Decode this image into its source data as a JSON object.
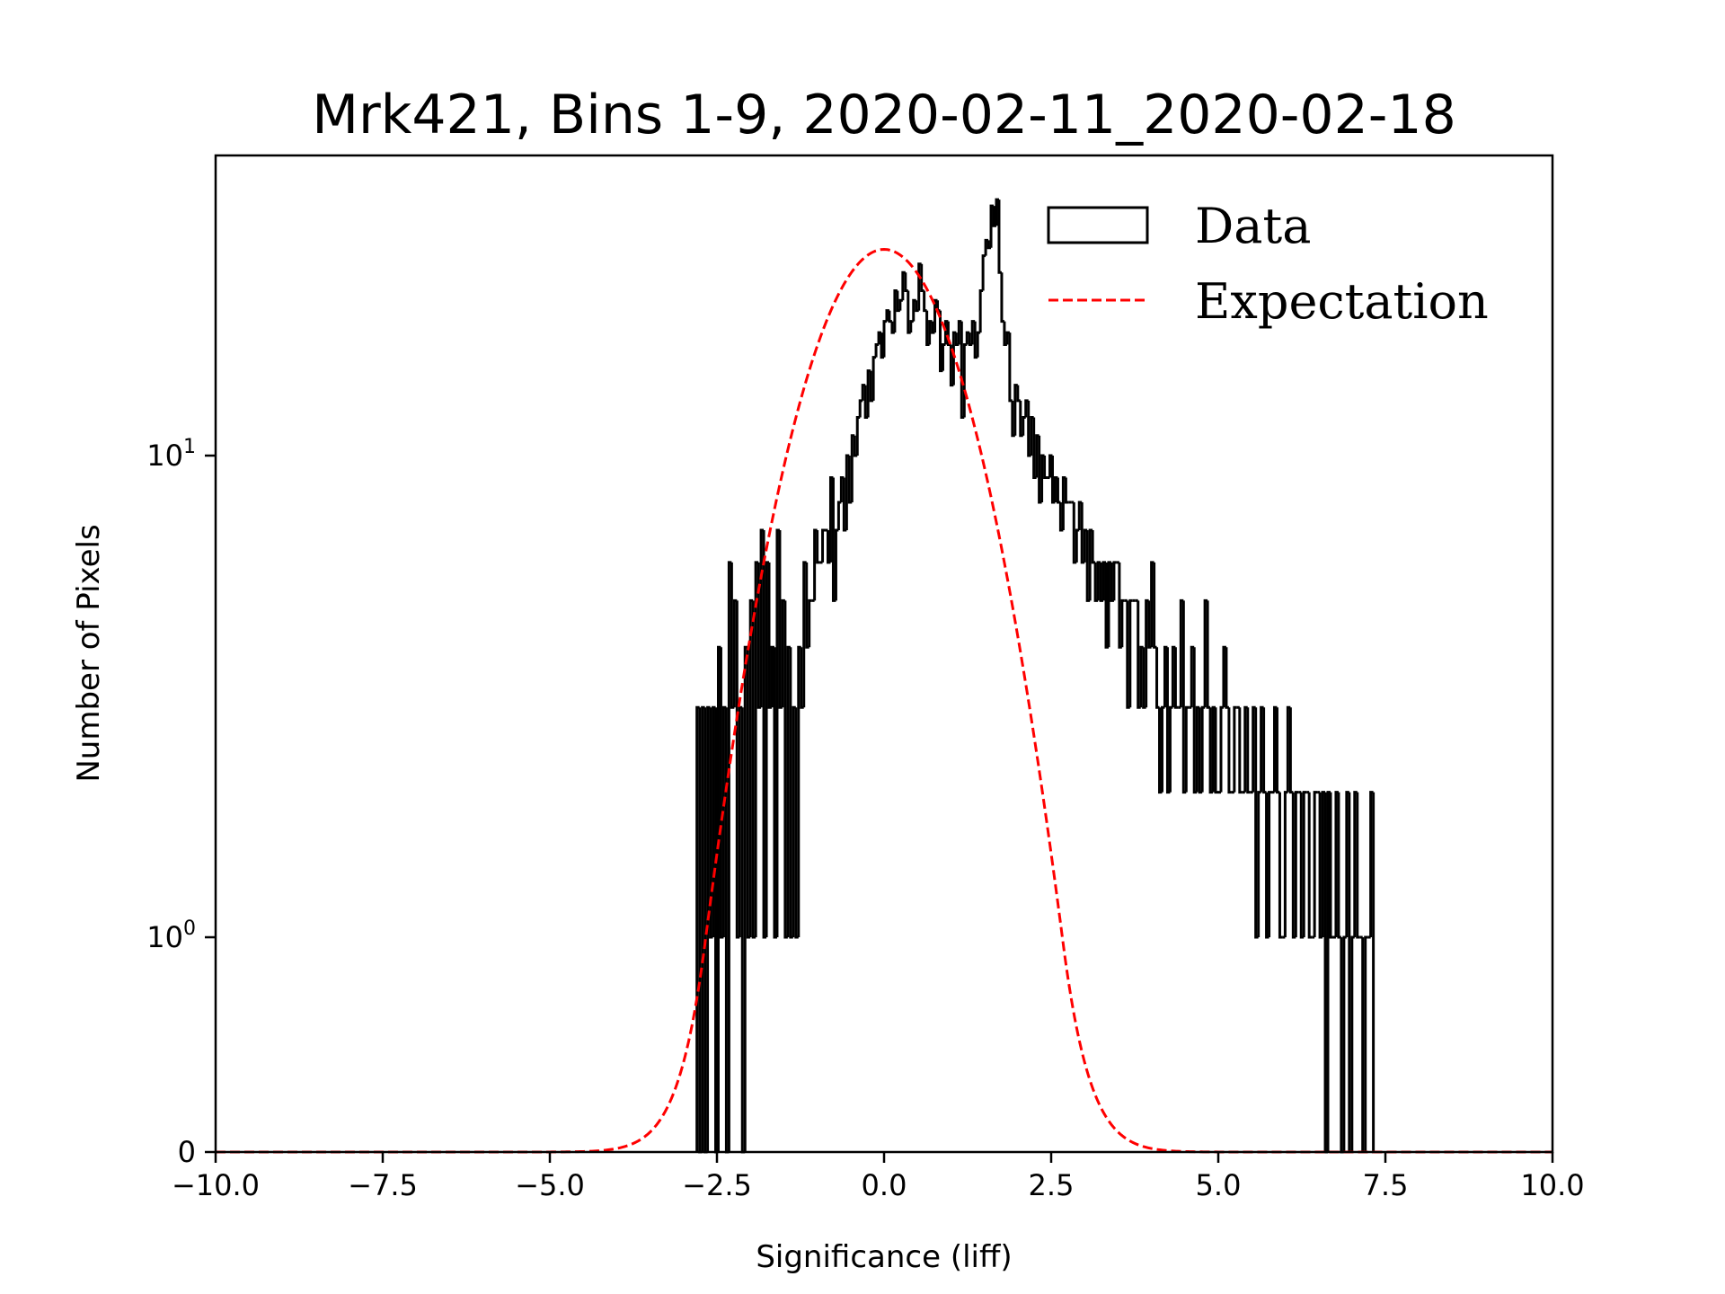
{
  "chart_data": {
    "type": "histogram",
    "title": "Mrk421, Bins 1-9, 2020-02-11_2020-02-18",
    "xlabel": "Significance (liff)",
    "ylabel": "Number of Pixels",
    "xlim": [
      -10,
      10
    ],
    "ylim": [
      0,
      42
    ],
    "yscale": "symlog",
    "linthresh": 1,
    "xticks": [
      -10.0,
      -7.5,
      -5.0,
      -2.5,
      0.0,
      2.5,
      5.0,
      7.5,
      10.0
    ],
    "xtick_labels": [
      "−10.0",
      "−7.5",
      "−5.0",
      "−2.5",
      "0.0",
      "2.5",
      "5.0",
      "7.5",
      "10.0"
    ],
    "yticks": [
      {
        "value": 0,
        "base": "0",
        "exp": ""
      },
      {
        "value": 1,
        "base": "10",
        "exp": "0"
      },
      {
        "value": 10,
        "base": "10",
        "exp": "1"
      }
    ],
    "legend": {
      "position": "top-right",
      "entries": [
        {
          "label": "Data",
          "style": "step",
          "color": "#000000"
        },
        {
          "label": "Expectation",
          "style": "dashed",
          "color": "#ff0000"
        }
      ]
    },
    "series": [
      {
        "name": "Data",
        "type": "step",
        "color": "#000000",
        "bin_start": -2.8,
        "bin_width": 0.04,
        "values": [
          3,
          0,
          3,
          0,
          3,
          1,
          3,
          0,
          4,
          1,
          3,
          0,
          6,
          3,
          5,
          1,
          3,
          0,
          4,
          1,
          5,
          1,
          6,
          3,
          7,
          1,
          6,
          3,
          4,
          1,
          7,
          3,
          5,
          1,
          4,
          1,
          3,
          1,
          4,
          3,
          6,
          4,
          5,
          5,
          7,
          6,
          6,
          7,
          7,
          6,
          9,
          5,
          7,
          8,
          9,
          7,
          10,
          8,
          11,
          10,
          12,
          13,
          14,
          12,
          15,
          13,
          16,
          17,
          18,
          16,
          19,
          20,
          19,
          18,
          22,
          20,
          21,
          24,
          22,
          18,
          19,
          21,
          20,
          25,
          22,
          20,
          17,
          19,
          18,
          21,
          20,
          15,
          17,
          19,
          17,
          14,
          18,
          17,
          19,
          12,
          17,
          18,
          17,
          19,
          16,
          18,
          22,
          26,
          28,
          27,
          33,
          30,
          34,
          24,
          19,
          17,
          18,
          13,
          11,
          14,
          13,
          11,
          12,
          13,
          10,
          12,
          9,
          11,
          8,
          10,
          9,
          9,
          10,
          8,
          9,
          8,
          7,
          9,
          8,
          8,
          8,
          6,
          7,
          8,
          6,
          7,
          5,
          7,
          6,
          5,
          6,
          5,
          6,
          4,
          6,
          5,
          6,
          6,
          4,
          5,
          5,
          3,
          5,
          5,
          5,
          3,
          4,
          3,
          5,
          4,
          6,
          4,
          3,
          2,
          3,
          4,
          2,
          3,
          4,
          3,
          3,
          5,
          2,
          3,
          3,
          4,
          2,
          3,
          2,
          3,
          5,
          3,
          2,
          3,
          2,
          2,
          3,
          4,
          3,
          2,
          2,
          3,
          3,
          2,
          2,
          3,
          2,
          2,
          3,
          1,
          2,
          3,
          2,
          1,
          2,
          2,
          3,
          2,
          1,
          1,
          2,
          3,
          2,
          1,
          2,
          2,
          1,
          2,
          2,
          1,
          1,
          2,
          2,
          1,
          2,
          0,
          2,
          1,
          1,
          2,
          1,
          0,
          1,
          2,
          0,
          1,
          2,
          1,
          1,
          0,
          1,
          1,
          2,
          0
        ]
      },
      {
        "name": "Expectation",
        "type": "line",
        "style": "dashed",
        "color": "#ff0000",
        "model": "gaussian",
        "mean": 0.0,
        "sigma": 1.04,
        "peak": 26.8
      }
    ]
  }
}
